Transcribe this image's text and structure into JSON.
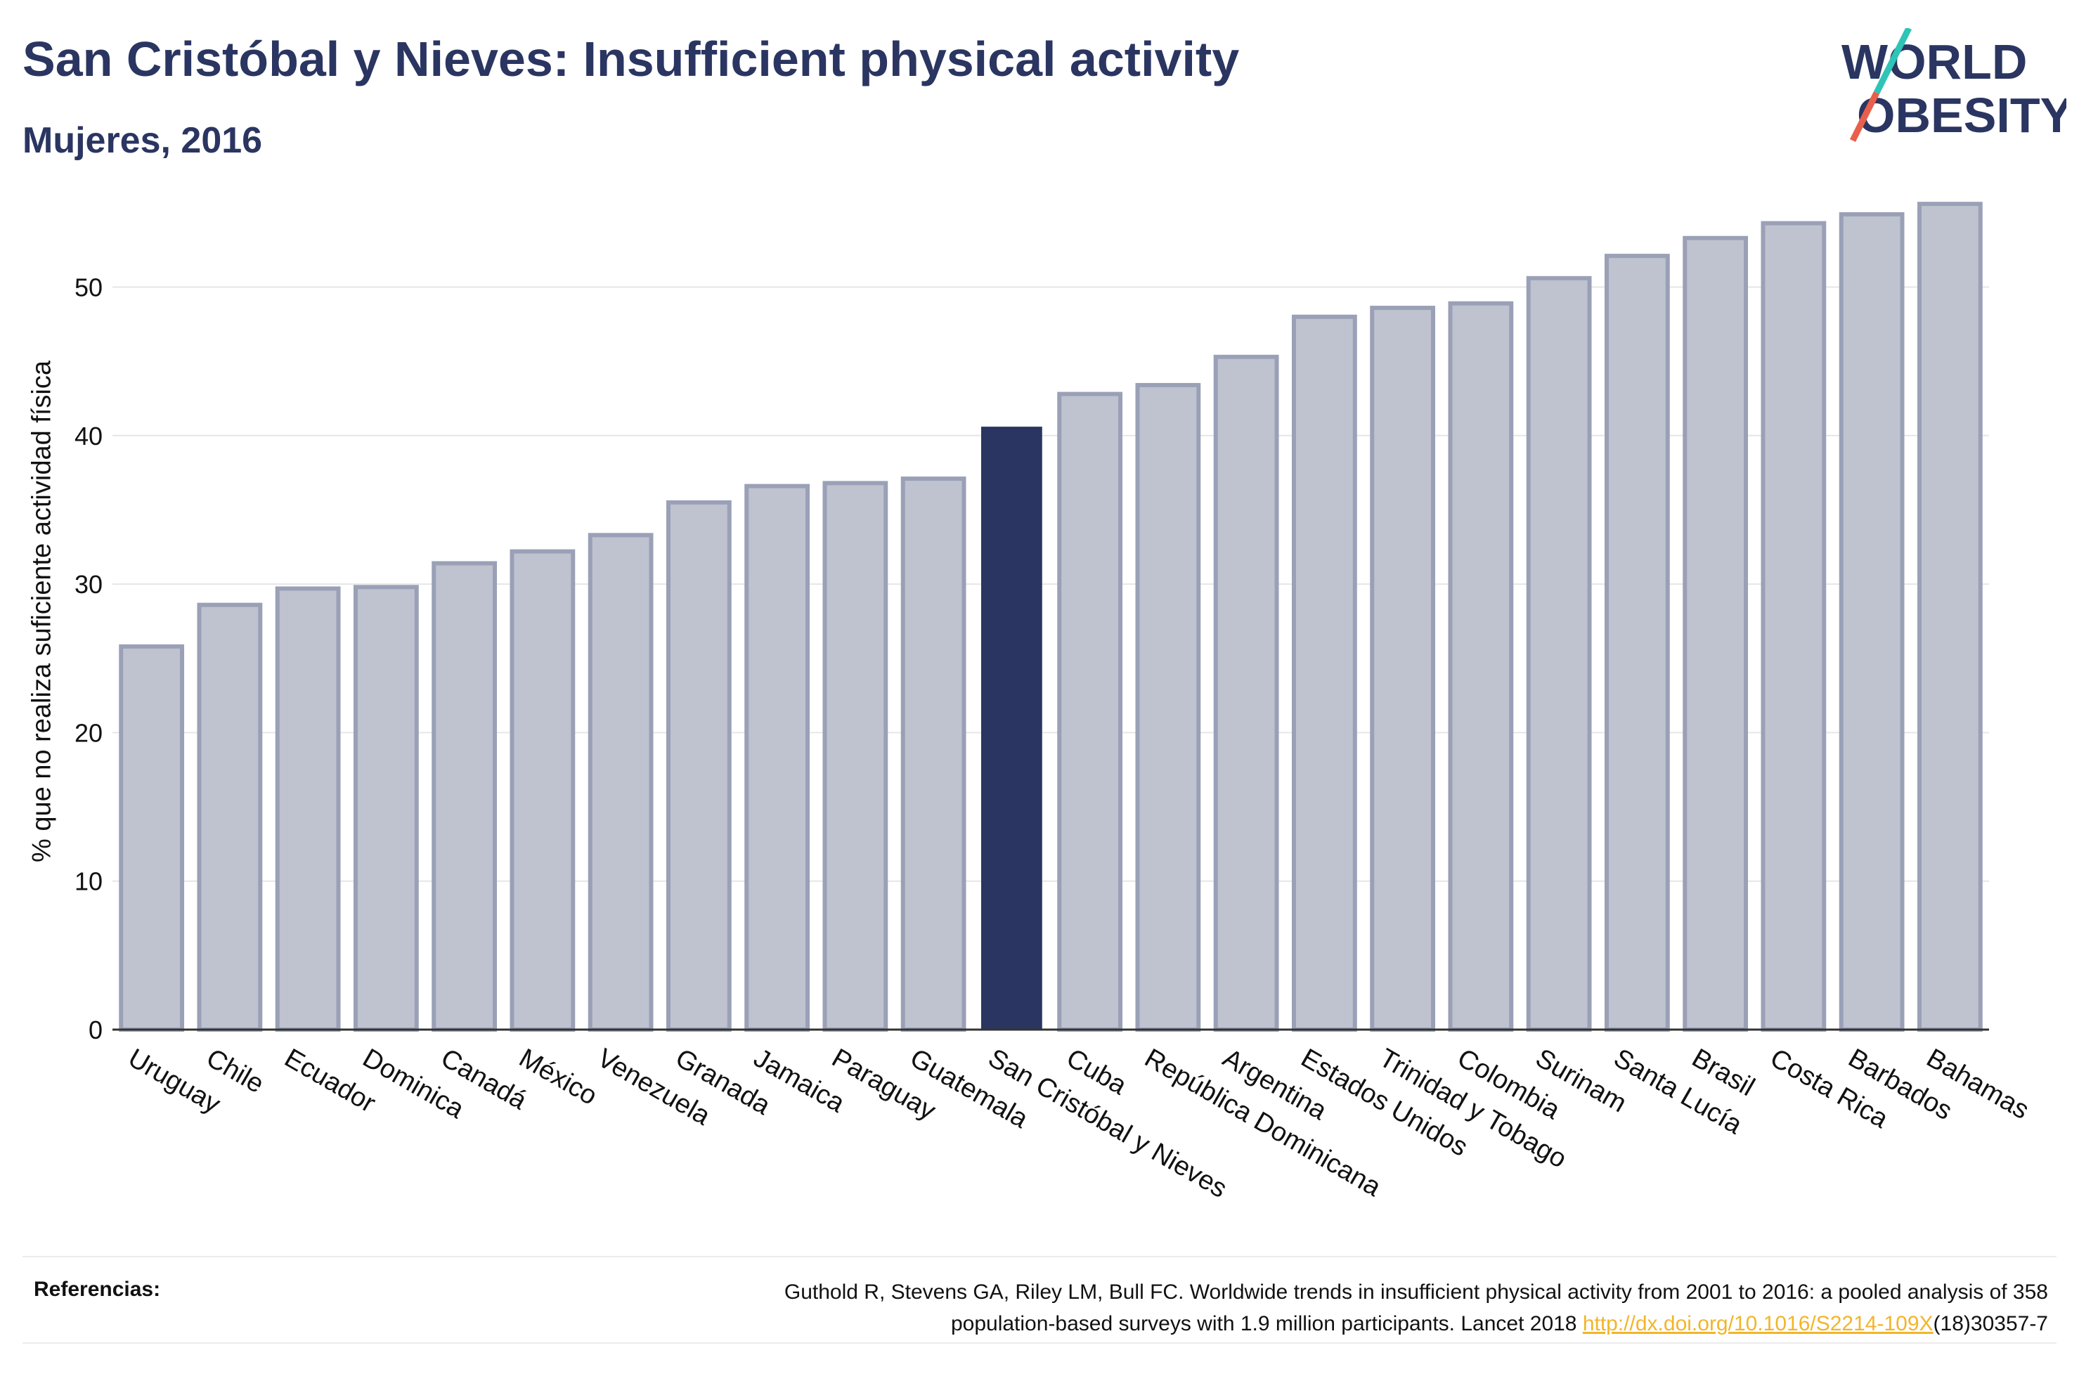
{
  "header": {
    "title": "San Cristóbal y Nieves: Insufficient physical activity",
    "subtitle": "Mujeres, 2016"
  },
  "logo": {
    "line1": "WORLD",
    "line2": "OBESITY",
    "accent_colors": [
      "#2ec4b6",
      "#e8604c"
    ]
  },
  "colors": {
    "highlight": "#2a3561",
    "default_fill": "#bfc3d0",
    "default_stroke": "#9aa0b6",
    "text": "#2a3561"
  },
  "chart_data": {
    "type": "bar",
    "categories": [
      "Uruguay",
      "Chile",
      "Ecuador",
      "Dominica",
      "Canadá",
      "México",
      "Venezuela",
      "Granada",
      "Jamaica",
      "Paraguay",
      "Guatemala",
      "San Cristóbal y Nieves",
      "Cuba",
      "República Dominicana",
      "Argentina",
      "Estados Unidos",
      "Trinidad y Tobago",
      "Colombia",
      "Surinam",
      "Santa Lucía",
      "Brasil",
      "Costa Rica",
      "Barbados",
      "Bahamas"
    ],
    "values": [
      25.8,
      28.6,
      29.7,
      29.8,
      31.4,
      32.2,
      33.3,
      35.5,
      36.6,
      36.8,
      37.1,
      40.6,
      42.8,
      43.4,
      45.3,
      48.0,
      48.6,
      48.9,
      50.6,
      52.1,
      53.3,
      54.3,
      54.9,
      55.6
    ],
    "highlight": "San Cristóbal y Nieves",
    "ylabel": "% que no realiza suficiente actividad física",
    "xlabel": "",
    "ylim": [
      0,
      57.5
    ],
    "yticks": [
      0,
      10,
      20,
      30,
      40,
      50
    ],
    "grid": true
  },
  "footer": {
    "ref_label": "Referencias:",
    "ref_text_1": "Guthold R, Stevens GA, Riley LM, Bull FC. Worldwide trends in insufficient physical activity from 2001 to 2016: a pooled analysis of 358",
    "ref_text_2": "population-based surveys with 1.9 million participants. Lancet 2018 ",
    "ref_link": "http://dx.doi.org/10.1016/S2214-109X",
    "ref_text_3": "(18)30357-7"
  }
}
